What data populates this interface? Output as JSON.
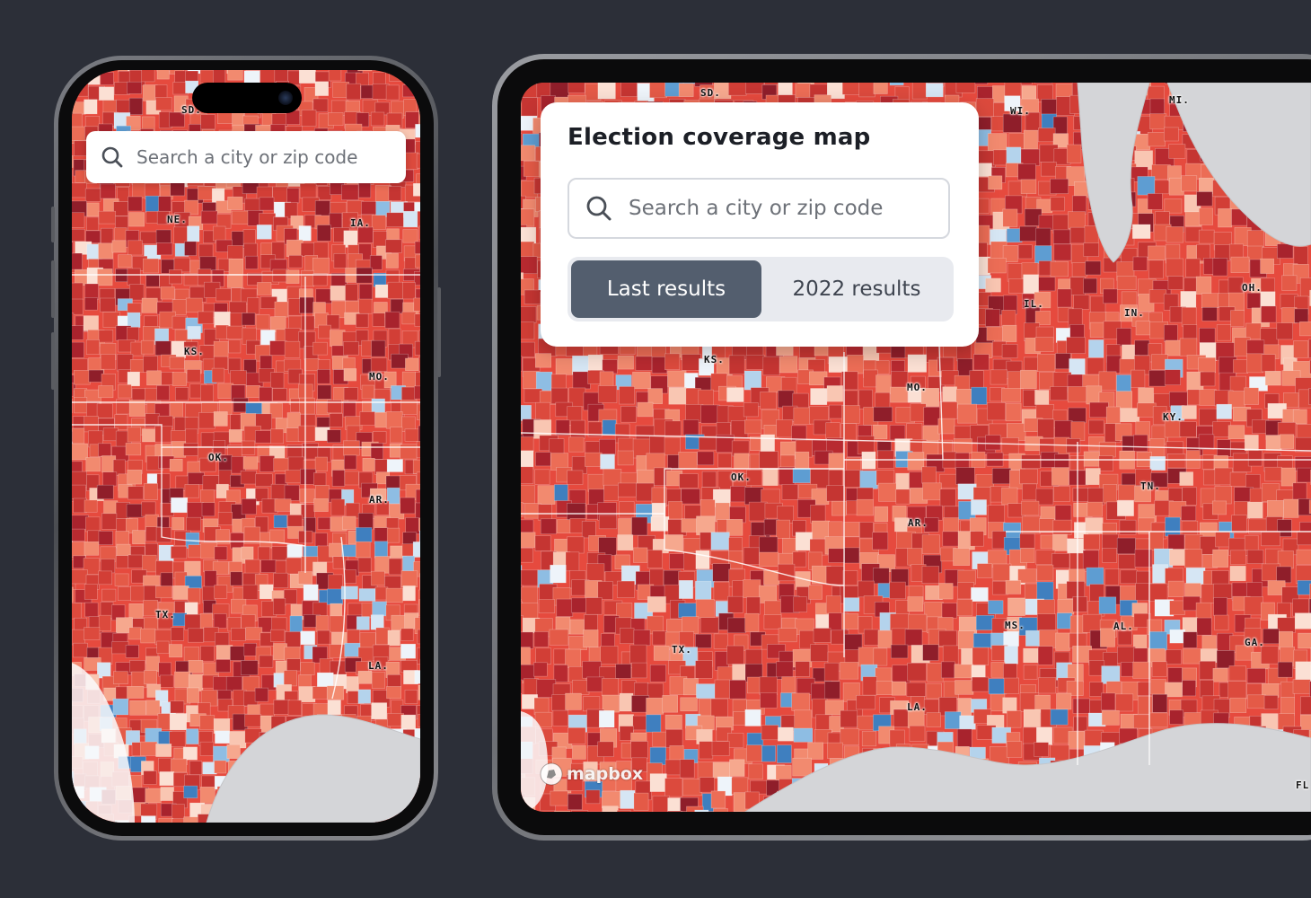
{
  "colors": {
    "background": "#2c2f38",
    "republican_strong": "#b3252d",
    "republican_medium": "#d9423a",
    "republican_light": "#f28a6f",
    "democrat_light": "#9cc7e8",
    "democrat_strong": "#3f85c6",
    "segment_active": "#535e6e"
  },
  "phone": {
    "search": {
      "placeholder": "Search a city or zip code",
      "icon": "search-icon"
    },
    "map_labels": [
      "SD.",
      "NE.",
      "IA.",
      "KS.",
      "MO.",
      "OK.",
      "AR.",
      "TX.",
      "LA."
    ]
  },
  "tablet": {
    "panel": {
      "title": "Election coverage map",
      "search": {
        "placeholder": "Search a city or zip code",
        "icon": "search-icon"
      },
      "segments": [
        {
          "label": "Last results",
          "selected": true
        },
        {
          "label": "2022 results",
          "selected": false
        }
      ]
    },
    "map_labels": [
      "SD.",
      "WI.",
      "MI.",
      "IL.",
      "IN.",
      "OH.",
      "KS.",
      "MO.",
      "KY.",
      "OK.",
      "TN.",
      "AR.",
      "MS.",
      "AL.",
      "GA.",
      "TX.",
      "LA.",
      "FL"
    ],
    "attribution": "mapbox"
  }
}
